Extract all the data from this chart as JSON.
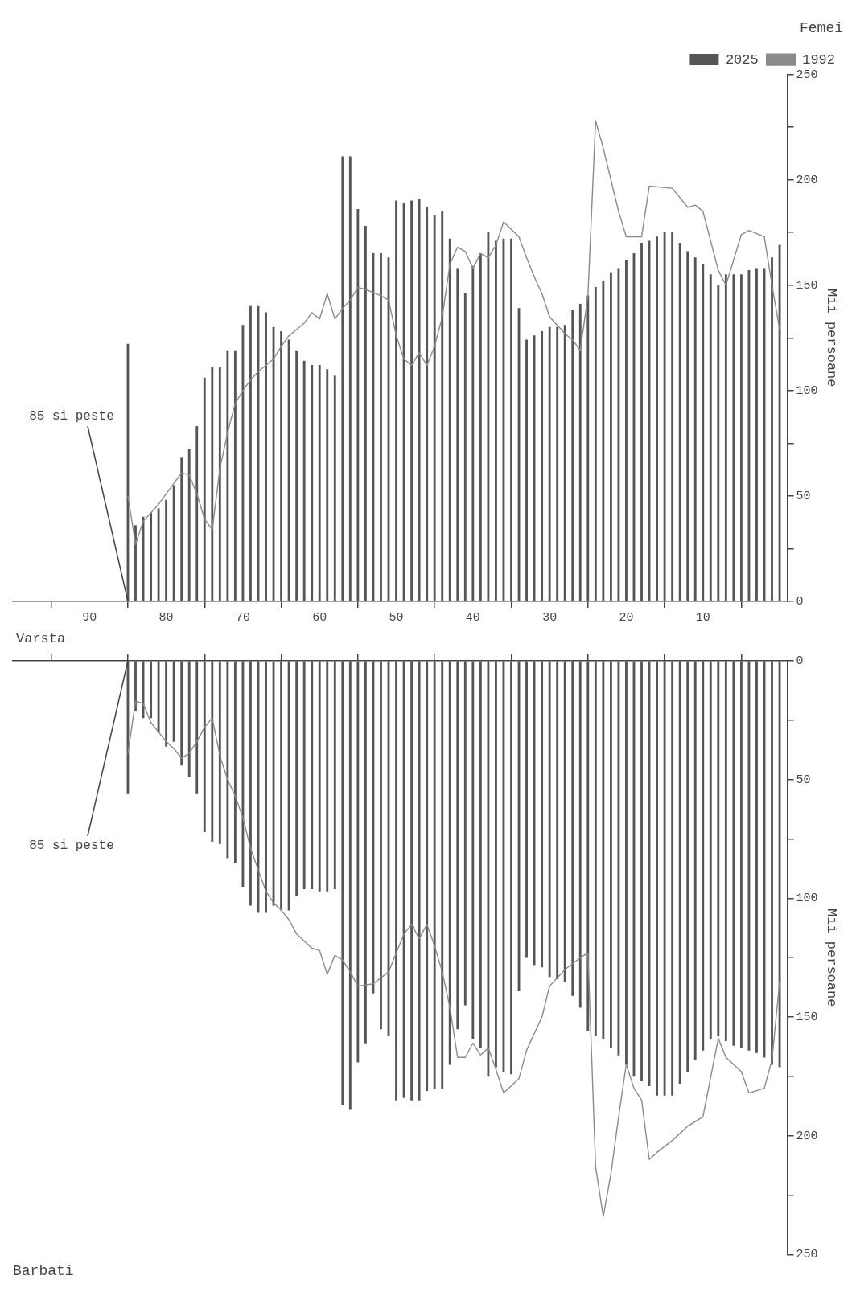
{
  "chart_data": [
    {
      "type": "bar",
      "title": "Femei",
      "xlabel": "Varsta",
      "ylabel": "Mii persoane",
      "legend": "top right",
      "grid": false,
      "marker": "none",
      "line_style": "solid",
      "xlim": [
        100,
        -1
      ],
      "xticks": [
        10,
        20,
        30,
        40,
        50,
        60,
        70,
        80,
        90
      ],
      "ylim": [
        0,
        250
      ],
      "yticks": [
        0,
        {
          "value": 25,
          "label": null
        },
        50,
        {
          "value": 75,
          "label": null
        },
        100,
        {
          "value": 125,
          "label": null
        },
        150,
        {
          "value": 175,
          "label": null
        },
        200,
        {
          "value": 225,
          "label": null
        },
        250
      ],
      "x": [
        0,
        1,
        2,
        3,
        4,
        5,
        6,
        7,
        8,
        9,
        10,
        11,
        12,
        13,
        14,
        15,
        16,
        17,
        18,
        19,
        20,
        21,
        22,
        23,
        24,
        25,
        26,
        27,
        28,
        29,
        30,
        31,
        32,
        33,
        34,
        35,
        36,
        37,
        38,
        39,
        40,
        41,
        42,
        43,
        44,
        45,
        46,
        47,
        48,
        49,
        50,
        51,
        52,
        53,
        54,
        55,
        56,
        57,
        58,
        59,
        60,
        61,
        62,
        63,
        64,
        65,
        66,
        67,
        68,
        69,
        70,
        71,
        72,
        73,
        74,
        75,
        76,
        77,
        78,
        79,
        80,
        81,
        82,
        83,
        84,
        85
      ],
      "series": [
        {
          "name": "2025",
          "type": "bar",
          "color": "#555555",
          "values": [
            169,
            163,
            158,
            158,
            157,
            155,
            155,
            155,
            150,
            155,
            160,
            163,
            166,
            170,
            175,
            175,
            173,
            171,
            170,
            165,
            162,
            158,
            156,
            152,
            149,
            145,
            141,
            138,
            131,
            130,
            130,
            128,
            126,
            124,
            139,
            172,
            172,
            171,
            175,
            165,
            159,
            146,
            158,
            172,
            185,
            183,
            187,
            191,
            190,
            189,
            190,
            163,
            165,
            165,
            178,
            186,
            211,
            211,
            107,
            110,
            112,
            112,
            114,
            119,
            124,
            128,
            130,
            137,
            140,
            140,
            131,
            119,
            119,
            111,
            111,
            106,
            83,
            72,
            68,
            55,
            48,
            44,
            42,
            40,
            36,
            122
          ]
        },
        {
          "name": "1992",
          "type": "line",
          "color": "#8a8a8a",
          "x": [
            0,
            1,
            2,
            4,
            5,
            7,
            8,
            10,
            11,
            12,
            14,
            17,
            18,
            20,
            21,
            23,
            24,
            25,
            26,
            27,
            28,
            30,
            31,
            32,
            33,
            34,
            36,
            37,
            38,
            39,
            40,
            41,
            42,
            43,
            44,
            45,
            46,
            47,
            48,
            49,
            50,
            51,
            52,
            54,
            55,
            56,
            57,
            58,
            59,
            60,
            61,
            62,
            64,
            65,
            66,
            68,
            69,
            70,
            71,
            72,
            73,
            74,
            75,
            76,
            77,
            78,
            79,
            81,
            82,
            83,
            84,
            85
          ],
          "values": [
            129,
            150,
            173,
            176,
            174,
            150,
            157,
            185,
            188,
            187,
            196,
            197,
            173,
            173,
            185,
            215,
            228,
            145,
            119,
            124,
            127,
            135,
            146,
            154,
            163,
            173,
            180,
            169,
            163,
            165,
            158,
            166,
            168,
            160,
            135,
            121,
            112,
            118,
            112,
            115,
            126,
            143,
            145,
            148,
            149,
            143,
            139,
            134,
            146,
            134,
            137,
            132,
            126,
            121,
            115,
            109,
            105,
            100,
            94,
            80,
            63,
            34,
            39,
            51,
            60,
            61,
            56,
            46,
            42,
            38,
            27,
            50
          ]
        }
      ],
      "annotations": [
        {
          "text": "85 si peste",
          "x": 85,
          "y": 0
        }
      ]
    },
    {
      "type": "bar",
      "title": "Barbati",
      "ylabel": "Mii persoane",
      "grid": false,
      "marker": "none",
      "line_style": "solid",
      "tick_labels": "y",
      "xlim": [
        100,
        -1
      ],
      "xticks": [
        10,
        20,
        30,
        40,
        50,
        60,
        70,
        80,
        90
      ],
      "ylim": [
        250,
        0
      ],
      "yticks": [
        0,
        {
          "value": 25,
          "label": null
        },
        50,
        {
          "value": 75,
          "label": null
        },
        100,
        {
          "value": 125,
          "label": null
        },
        150,
        {
          "value": 175,
          "label": null
        },
        200,
        {
          "value": 225,
          "label": null
        },
        250
      ],
      "x": [
        0,
        1,
        2,
        3,
        4,
        5,
        6,
        7,
        8,
        9,
        10,
        11,
        12,
        13,
        14,
        15,
        16,
        17,
        18,
        19,
        20,
        21,
        22,
        23,
        24,
        25,
        26,
        27,
        28,
        29,
        30,
        31,
        32,
        33,
        34,
        35,
        36,
        37,
        38,
        39,
        40,
        41,
        42,
        43,
        44,
        45,
        46,
        47,
        48,
        49,
        50,
        51,
        52,
        53,
        54,
        55,
        56,
        57,
        58,
        59,
        60,
        61,
        62,
        63,
        64,
        65,
        66,
        67,
        68,
        69,
        70,
        71,
        72,
        73,
        74,
        75,
        76,
        77,
        78,
        79,
        80,
        81,
        82,
        83,
        84,
        85
      ],
      "series": [
        {
          "type": "bar",
          "color": "#555555",
          "values": [
            171,
            170,
            167,
            165,
            164,
            163,
            162,
            160,
            158,
            159,
            164,
            168,
            173,
            178,
            183,
            183,
            183,
            179,
            177,
            175,
            170,
            166,
            163,
            159,
            158,
            156,
            146,
            141,
            135,
            134,
            133,
            129,
            128,
            125,
            139,
            174,
            173,
            171,
            175,
            163,
            159,
            145,
            155,
            170,
            180,
            180,
            181,
            185,
            185,
            184,
            185,
            158,
            155,
            140,
            161,
            169,
            189,
            187,
            96,
            97,
            97,
            96,
            96,
            99,
            105,
            105,
            103,
            106,
            106,
            103,
            95,
            85,
            83,
            77,
            76,
            72,
            56,
            49,
            44,
            34,
            36,
            30,
            24,
            24,
            21,
            56
          ]
        },
        {
          "type": "line",
          "color": "#8a8a8a",
          "x": [
            0,
            1,
            2,
            4,
            5,
            7,
            8,
            10,
            12,
            14,
            16,
            17,
            18,
            19,
            20,
            21,
            22,
            23,
            24,
            25,
            26,
            28,
            30,
            31,
            33,
            34,
            36,
            37,
            38,
            39,
            40,
            41,
            42,
            43,
            44,
            45,
            46,
            47,
            48,
            49,
            50,
            51,
            53,
            55,
            56,
            57,
            58,
            59,
            60,
            61,
            62,
            63,
            64,
            65,
            66,
            67,
            68,
            69,
            70,
            71,
            72,
            73,
            74,
            75,
            76,
            77,
            78,
            79,
            80,
            81,
            82,
            83,
            84,
            85
          ],
          "values": [
            135,
            168,
            180,
            182,
            173,
            167,
            159,
            192,
            196,
            202,
            207,
            210,
            185,
            180,
            170,
            192,
            216,
            234,
            213,
            123,
            125,
            130,
            137,
            150,
            164,
            176,
            182,
            172,
            163,
            166,
            161,
            167,
            167,
            146,
            131,
            120,
            111,
            117,
            111,
            115,
            123,
            131,
            136,
            137,
            131,
            126,
            124,
            132,
            122,
            121,
            118,
            115,
            109,
            105,
            102,
            97,
            88,
            79,
            66,
            57,
            50,
            40,
            24,
            28,
            34,
            39,
            41,
            37,
            34,
            30,
            26,
            18,
            17,
            39
          ]
        }
      ],
      "annotations": [
        {
          "text": "85 si peste",
          "x": 85,
          "y": 0
        }
      ]
    }
  ]
}
